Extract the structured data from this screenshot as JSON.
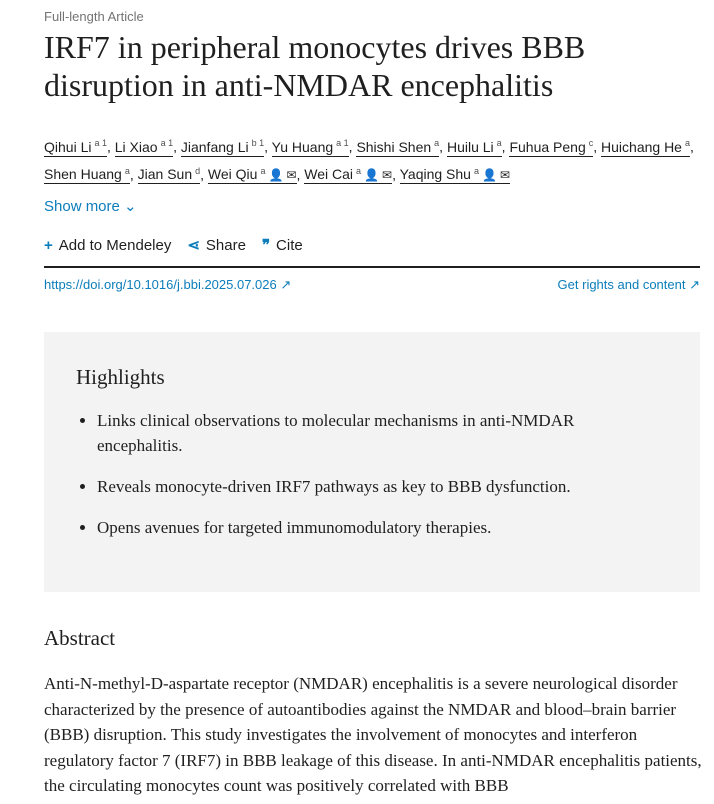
{
  "article_type": "Full-length Article",
  "title": "IRF7 in peripheral monocytes drives BBB disruption in anti-NMDAR encephalitis",
  "authors": [
    {
      "name": "Qihui Li",
      "sup": "a 1"
    },
    {
      "name": "Li Xiao",
      "sup": "a 1"
    },
    {
      "name": "Jianfang Li",
      "sup": "b 1"
    },
    {
      "name": "Yu Huang",
      "sup": "a 1"
    },
    {
      "name": "Shishi Shen",
      "sup": "a"
    },
    {
      "name": "Huilu Li",
      "sup": "a"
    },
    {
      "name": "Fuhua Peng",
      "sup": "c"
    },
    {
      "name": "Huichang He",
      "sup": "a"
    },
    {
      "name": "Shen Huang",
      "sup": "a"
    },
    {
      "name": "Jian Sun",
      "sup": "d"
    },
    {
      "name": "Wei Qiu",
      "sup": "a"
    },
    {
      "name": "Wei Cai",
      "sup": "a"
    },
    {
      "name": "Yaqing Shu",
      "sup": "a"
    }
  ],
  "show_more": "Show more",
  "actions": {
    "mendeley": "Add to Mendeley",
    "share": "Share",
    "cite": "Cite"
  },
  "doi": "https://doi.org/10.1016/j.bbi.2025.07.026",
  "rights": "Get rights and content",
  "highlights": {
    "title": "Highlights",
    "items": [
      "Links clinical observations to molecular mechanisms in anti-NMDAR encephalitis.",
      "Reveals monocyte-driven IRF7 pathways as key to BBB dysfunction.",
      "Opens avenues for targeted immunomodulatory therapies."
    ]
  },
  "abstract": {
    "title": "Abstract",
    "text": "Anti-N-methyl-D-aspartate receptor (NMDAR) encephalitis is a severe neurological disorder characterized by the presence of autoantibodies against the NMDAR and blood–brain barrier (BBB) disruption. This study investigates the involvement of monocytes and interferon regulatory factor 7 (IRF7) in BBB leakage of this disease. In anti-NMDAR encephalitis patients, the circulating monocytes count was positively correlated with BBB"
  }
}
